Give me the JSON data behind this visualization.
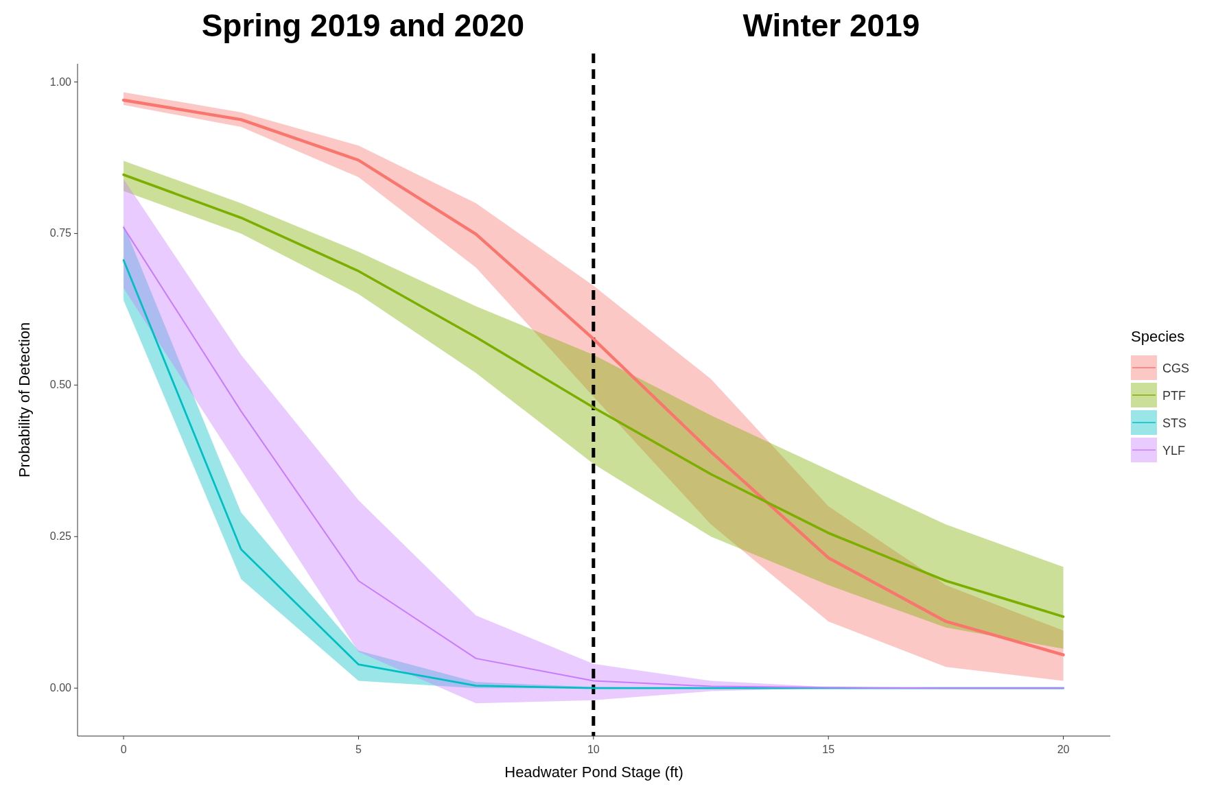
{
  "chart_data": {
    "type": "line",
    "xlabel": "Headwater Pond Stage (ft)",
    "ylabel": "Probability of Detection",
    "legend_title": "Species",
    "legend": "right",
    "grid": false,
    "marker": "none",
    "line_style": "solid",
    "x": [
      0,
      2.5,
      5,
      7.5,
      10,
      12.5,
      15,
      17.5,
      20
    ],
    "xlim": [
      -0.98,
      21
    ],
    "xticks": [
      0,
      5,
      10,
      15,
      20
    ],
    "ylim": [
      -0.079,
      1.03
    ],
    "yticks": [
      {
        "value": 0,
        "label": "0.00"
      },
      {
        "value": 0.25,
        "label": "0.25"
      },
      {
        "value": 0.5,
        "label": "0.50"
      },
      {
        "value": 0.75,
        "label": "0.75"
      },
      {
        "value": 1,
        "label": "1.00"
      }
    ],
    "series": [
      {
        "name": "CGS",
        "color": "#f8766d",
        "values": [
          0.97,
          0.938,
          0.871,
          0.749,
          0.576,
          0.39,
          0.215,
          0.11,
          0.055
        ],
        "lower": [
          0.962,
          0.926,
          0.843,
          0.694,
          0.481,
          0.27,
          0.11,
          0.035,
          0.012
        ],
        "upper": [
          0.983,
          0.95,
          0.895,
          0.8,
          0.664,
          0.51,
          0.3,
          0.17,
          0.095
        ]
      },
      {
        "name": "PTF",
        "color": "#7cae00",
        "values": [
          0.847,
          0.776,
          0.688,
          0.579,
          0.463,
          0.353,
          0.256,
          0.177,
          0.118
        ],
        "lower": [
          0.82,
          0.75,
          0.65,
          0.52,
          0.37,
          0.25,
          0.17,
          0.1,
          0.065
        ],
        "upper": [
          0.87,
          0.8,
          0.72,
          0.63,
          0.55,
          0.45,
          0.36,
          0.27,
          0.2
        ]
      },
      {
        "name": "STS",
        "color": "#00bfc4",
        "values": [
          0.706,
          0.229,
          0.039,
          0.004,
          0,
          0,
          0,
          0,
          0
        ],
        "lower": [
          0.64,
          0.18,
          0.012,
          0,
          0,
          0,
          0,
          0,
          0
        ],
        "upper": [
          0.765,
          0.29,
          0.062,
          0.01,
          0.002,
          0,
          0,
          0,
          0
        ]
      },
      {
        "name": "YLF",
        "color": "#c77cff",
        "values": [
          0.76,
          0.457,
          0.177,
          0.049,
          0.012,
          0.003,
          0.001,
          0,
          0
        ],
        "lower": [
          0.66,
          0.36,
          0.06,
          -0.025,
          -0.02,
          -0.005,
          0,
          0,
          0
        ],
        "upper": [
          0.84,
          0.55,
          0.31,
          0.12,
          0.04,
          0.012,
          0.002,
          0,
          0
        ]
      }
    ],
    "ref_lines": [
      {
        "axis": "x",
        "value": 10,
        "label": null,
        "color": "#000000",
        "line_style": "dashed"
      }
    ],
    "annotations": [
      "Spring 2019 and 2020",
      "Winter 2019"
    ]
  }
}
